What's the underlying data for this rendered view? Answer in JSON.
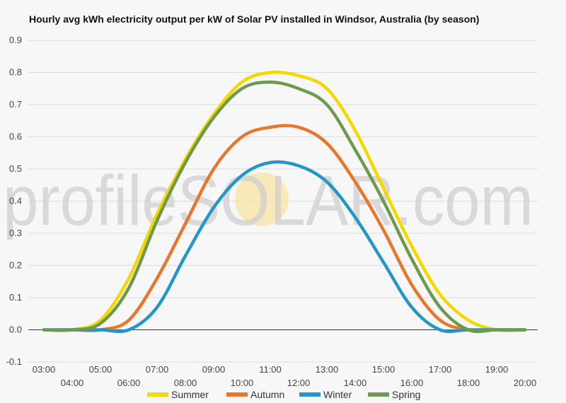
{
  "chart_data": {
    "type": "line",
    "title": "Hourly avg kWh electricity output per kW of Solar PV installed in Windsor, Australia (by season)",
    "xlabel": "",
    "ylabel": "",
    "x": [
      "03:00",
      "04:00",
      "05:00",
      "06:00",
      "07:00",
      "08:00",
      "09:00",
      "10:00",
      "11:00",
      "12:00",
      "13:00",
      "14:00",
      "15:00",
      "16:00",
      "17:00",
      "18:00",
      "19:00",
      "20:00"
    ],
    "ylim": [
      -0.1,
      0.9
    ],
    "yticks": [
      "-0.1",
      "0.0",
      "0.1",
      "0.2",
      "0.3",
      "0.4",
      "0.5",
      "0.6",
      "0.7",
      "0.8",
      "0.9"
    ],
    "grid": true,
    "legend_position": "bottom",
    "series": [
      {
        "name": "Summer",
        "color": "#f5d800",
        "values": [
          0.0,
          0.0,
          0.03,
          0.16,
          0.36,
          0.53,
          0.67,
          0.77,
          0.8,
          0.79,
          0.75,
          0.62,
          0.44,
          0.26,
          0.11,
          0.03,
          0.0,
          0.0
        ]
      },
      {
        "name": "Autumn",
        "color": "#e8772e",
        "values": [
          0.0,
          0.0,
          0.0,
          0.03,
          0.16,
          0.33,
          0.5,
          0.6,
          0.63,
          0.63,
          0.58,
          0.46,
          0.31,
          0.14,
          0.03,
          0.0,
          0.0,
          0.0
        ]
      },
      {
        "name": "Winter",
        "color": "#2497c8",
        "values": [
          0.0,
          0.0,
          0.0,
          0.0,
          0.07,
          0.23,
          0.38,
          0.48,
          0.52,
          0.51,
          0.46,
          0.35,
          0.21,
          0.07,
          0.0,
          0.0,
          0.0,
          0.0
        ]
      },
      {
        "name": "Spring",
        "color": "#6e9a4f",
        "values": [
          0.0,
          0.0,
          0.02,
          0.13,
          0.34,
          0.52,
          0.66,
          0.75,
          0.77,
          0.75,
          0.7,
          0.56,
          0.4,
          0.22,
          0.07,
          0.0,
          0.0,
          0.0
        ]
      }
    ],
    "watermark": "profileSOLAR.com"
  }
}
